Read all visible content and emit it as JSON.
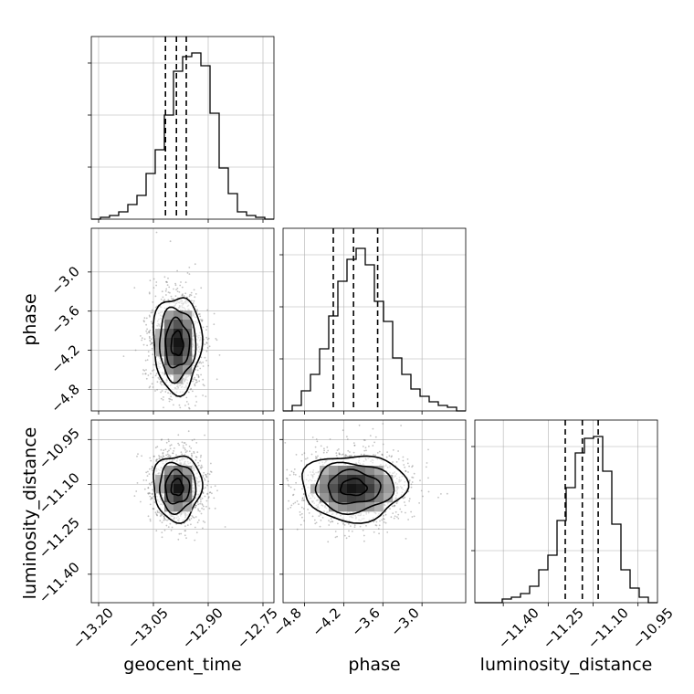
{
  "chart_data": {
    "type": "corner",
    "parameters": [
      "geocent_time",
      "phase",
      "luminosity_distance"
    ],
    "axis_labels": {
      "geocent_time": "geocent_time",
      "phase": "phase",
      "luminosity_distance": "luminosity_distance"
    },
    "ranges": {
      "geocent_time": [
        -13.22,
        -12.72
      ],
      "phase": [
        -5.13,
        -2.33
      ],
      "luminosity_distance": [
        -11.495,
        -10.885
      ]
    },
    "ticks": {
      "geocent_time": [
        -13.2,
        -13.05,
        -12.9,
        -12.75
      ],
      "phase": [
        -4.8,
        -4.2,
        -3.6,
        -3.0
      ],
      "luminosity_distance": [
        -11.4,
        -11.25,
        -11.1,
        -10.95
      ]
    },
    "tick_labels": {
      "geocent_time": [
        "−13.20",
        "−13.05",
        "−12.90",
        "−12.75"
      ],
      "phase": [
        "−4.8",
        "−4.2",
        "−3.6",
        "−3.0"
      ],
      "luminosity_distance": [
        "−11.40",
        "−11.25",
        "−11.10",
        "−10.95"
      ]
    },
    "quantiles": {
      "geocent_time": [
        -13.017,
        -12.987,
        -12.96
      ],
      "phase": [
        -4.36,
        -4.05,
        -3.68
      ],
      "luminosity_distance": [
        -11.193,
        -11.136,
        -11.083
      ]
    },
    "histograms": {
      "geocent_time": {
        "edges_range": [
          -13.22,
          -12.72
        ],
        "counts": [
          0.0,
          0.01,
          0.02,
          0.04,
          0.08,
          0.13,
          0.25,
          0.38,
          0.57,
          0.81,
          0.89,
          0.91,
          0.84,
          0.58,
          0.28,
          0.14,
          0.04,
          0.02,
          0.01,
          0.0
        ]
      },
      "phase": {
        "edges_range": [
          -5.13,
          -2.33
        ],
        "counts": [
          0.0,
          0.03,
          0.11,
          0.2,
          0.34,
          0.52,
          0.71,
          0.83,
          0.89,
          0.8,
          0.6,
          0.49,
          0.29,
          0.2,
          0.12,
          0.08,
          0.05,
          0.03,
          0.02,
          0.0
        ]
      },
      "luminosity_distance": {
        "edges_range": [
          -11.495,
          -10.885
        ],
        "counts": [
          0.0,
          0.0,
          0.0,
          0.02,
          0.03,
          0.05,
          0.09,
          0.18,
          0.26,
          0.45,
          0.63,
          0.82,
          0.9,
          0.91,
          0.72,
          0.43,
          0.18,
          0.08,
          0.03,
          0.0
        ]
      }
    },
    "pairs": [
      {
        "x": "geocent_time",
        "y": "phase",
        "center": [
          -12.985,
          -4.1
        ],
        "sigma": [
          0.033,
          0.37
        ],
        "rho": 0.0
      },
      {
        "x": "geocent_time",
        "y": "luminosity_distance",
        "center": [
          -12.985,
          -11.11
        ],
        "sigma": [
          0.033,
          0.055
        ],
        "rho": 0.0
      },
      {
        "x": "phase",
        "y": "luminosity_distance",
        "center": [
          -4.05,
          -11.11
        ],
        "sigma": [
          0.4,
          0.055
        ],
        "rho": 0.0
      }
    ],
    "contour_levels_sigma": [
      0.5,
      1.0,
      1.5,
      2.0
    ],
    "grid": true,
    "colors": {
      "hist_line": "#000000",
      "quantile_line": "#000000",
      "grid": "#b0b0b0",
      "points": "#7a7a7a",
      "contour": "#000000"
    }
  }
}
